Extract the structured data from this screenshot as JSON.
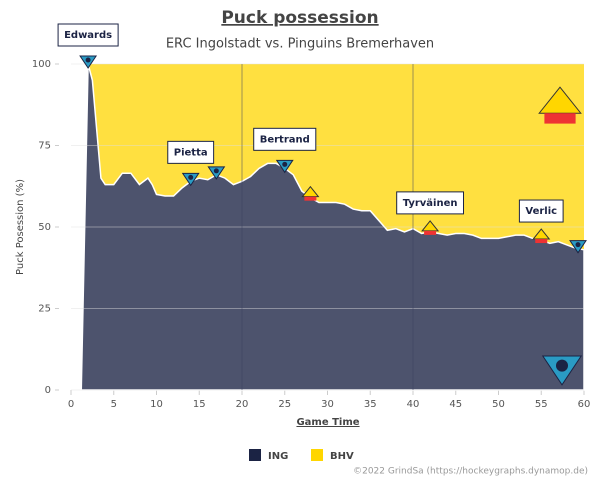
{
  "chart_data": {
    "type": "stacked-area",
    "title": "Puck possession",
    "subtitle": "ERC Ingolstadt vs. Pinguins Bremerhaven",
    "x_label": "Game Time",
    "y_label": "Puck Posession (%)",
    "credit": "©2022 GrindSa (https://hockeygraphs.dynamop.de)",
    "xlim": [
      0,
      60
    ],
    "ylim": [
      0,
      100
    ],
    "xticks": [
      0,
      5,
      10,
      15,
      20,
      25,
      30,
      35,
      40,
      45,
      50,
      55,
      60
    ],
    "yticks": [
      0,
      25,
      50,
      75,
      100
    ],
    "grid": true,
    "period_lines": [
      20,
      40
    ],
    "x": [
      1.2,
      2,
      2.5,
      3,
      3.5,
      4,
      5,
      6,
      7,
      8,
      9,
      9.5,
      10,
      11,
      12,
      13,
      14,
      15,
      16,
      17,
      18,
      19,
      20,
      21,
      22,
      23,
      24,
      25,
      26,
      27,
      28,
      29,
      30,
      31,
      32,
      33,
      34,
      35,
      36,
      37,
      38,
      39,
      40,
      41,
      42,
      43,
      44,
      45,
      46,
      47,
      48,
      49,
      50,
      51,
      52,
      53,
      54,
      55,
      56,
      57,
      58,
      59,
      60
    ],
    "series": [
      {
        "name": "ING",
        "color": "#1b2344",
        "values": [
          0,
          100,
          95,
          80,
          65,
          63,
          63,
          66.5,
          66.5,
          63,
          65,
          63,
          60,
          59.5,
          59.5,
          62,
          64,
          65,
          64.5,
          66,
          65,
          63,
          64,
          65.5,
          68,
          69.5,
          69.5,
          68,
          66,
          61,
          59,
          57.5,
          57.5,
          57.5,
          57,
          55.5,
          55,
          55,
          52,
          49,
          49.5,
          48.5,
          49.5,
          48,
          48.5,
          48,
          47.5,
          48,
          48,
          47.5,
          46.5,
          46.5,
          46.5,
          47,
          47.5,
          47.5,
          46.5,
          46,
          45,
          45.5,
          44.5,
          43.5,
          43
        ]
      },
      {
        "name": "BHV",
        "color": "#ffd600",
        "values": [
          0,
          0,
          5,
          20,
          35,
          37,
          37,
          33.5,
          33.5,
          37,
          35,
          37,
          40,
          40.5,
          40.5,
          38,
          36,
          35,
          35.5,
          34,
          35,
          37,
          36,
          34.5,
          32,
          30.5,
          30.5,
          32,
          34,
          39,
          41,
          42.5,
          42.5,
          42.5,
          43,
          44.5,
          45,
          45,
          48,
          51,
          50.5,
          51.5,
          50.5,
          52,
          51.5,
          52,
          52.5,
          52,
          52,
          52.5,
          53.5,
          53.5,
          53.5,
          53,
          52.5,
          52.5,
          53.5,
          54,
          55,
          54.5,
          55.5,
          56.5,
          57
        ]
      }
    ],
    "goals": [
      {
        "x": 2,
        "team": "ING",
        "label": "Edwards"
      },
      {
        "x": 14,
        "team": "ING",
        "label": "Pietta"
      },
      {
        "x": 17,
        "team": "ING"
      },
      {
        "x": 25,
        "team": "ING",
        "label": "Bertrand"
      },
      {
        "x": 28,
        "team": "BHV"
      },
      {
        "x": 42,
        "team": "BHV",
        "label": "Tyrväinen"
      },
      {
        "x": 55,
        "team": "BHV",
        "label": "Verlic"
      },
      {
        "x": 59.3,
        "team": "ING"
      }
    ]
  }
}
